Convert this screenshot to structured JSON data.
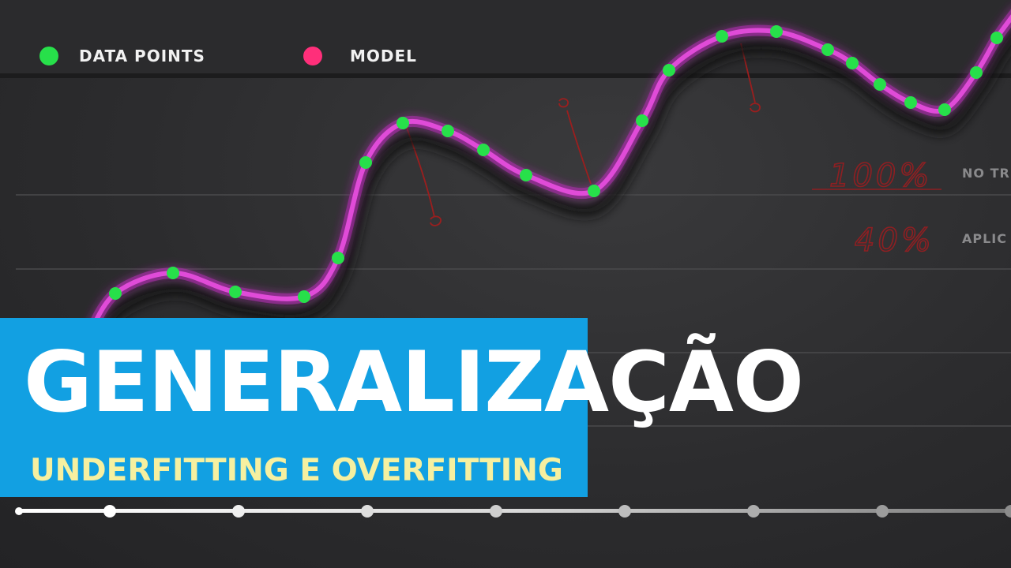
{
  "legend": {
    "data_points_label": "DATA POINTS",
    "model_label": "MODEL",
    "data_points_color": "#27e04a",
    "model_color": "#ff2f7a"
  },
  "side_labels": {
    "row1": "NO TR",
    "row2": "APLIC"
  },
  "annotations": {
    "percent_1": "100%",
    "percent_2": "40%"
  },
  "title": {
    "main": "GENERALIZAÇÃO",
    "subtitle": "UNDERFITTING E OVERFITTING"
  },
  "colors": {
    "banner": "#12a0e2",
    "curve": "#e04bd8",
    "timeline": "#ffffff"
  },
  "timeline": {
    "node_count": 8
  }
}
